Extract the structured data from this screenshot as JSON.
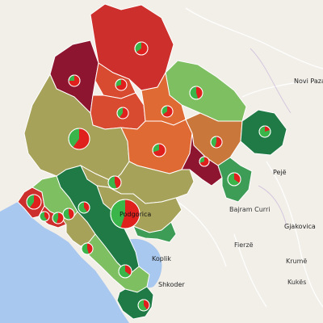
{
  "map": {
    "colors": {
      "land": "#f2efe9",
      "sea": "#a9c8ef",
      "border": "#ffffff",
      "dark_red": "#8e1530",
      "red": "#cc2f2c",
      "red_orange": "#d84b31",
      "orange": "#e06a34",
      "brown_orange": "#c9773a",
      "olive": "#a7a25a",
      "light_green": "#7ebf62",
      "green": "#3d9c56",
      "dark_green": "#1f7a45",
      "pie_red": "#e0201d",
      "pie_green": "#3ab54a"
    },
    "places": [
      {
        "name": "Novi Pazar"
      },
      {
        "name": "Pejë"
      },
      {
        "name": "Bajram Curri"
      },
      {
        "name": "Gjakovica"
      },
      {
        "name": "Fierzë"
      },
      {
        "name": "Krumë"
      },
      {
        "name": "Kukës"
      },
      {
        "name": "Koplik"
      },
      {
        "name": "Shkoder"
      },
      {
        "name": "Podgorica"
      }
    ],
    "regions": [
      {
        "id": "pljevlja",
        "color_key": "red",
        "pie_red_pct": 65
      },
      {
        "id": "pluzine",
        "color_key": "dark_red",
        "pie_red_pct": 75
      },
      {
        "id": "zabljak",
        "color_key": "red_orange",
        "pie_red_pct": 70
      },
      {
        "id": "bijelo-polje",
        "color_key": "light_green",
        "pie_red_pct": 45
      },
      {
        "id": "savnik",
        "color_key": "red_orange",
        "pie_red_pct": 60
      },
      {
        "id": "mojkovac",
        "color_key": "orange",
        "pie_red_pct": 65
      },
      {
        "id": "niksic",
        "color_key": "olive",
        "pie_red_pct": 60
      },
      {
        "id": "kolasin",
        "color_key": "orange",
        "pie_red_pct": 70
      },
      {
        "id": "berane",
        "color_key": "brown_orange",
        "pie_red_pct": 55
      },
      {
        "id": "rozaje",
        "color_key": "dark_green",
        "pie_red_pct": 20
      },
      {
        "id": "andrijevica",
        "color_key": "dark_red",
        "pie_red_pct": 70
      },
      {
        "id": "plav",
        "color_key": "green",
        "pie_red_pct": 35
      },
      {
        "id": "danilovgrad",
        "color_key": "olive",
        "pie_red_pct": 45
      },
      {
        "id": "podgorica",
        "color_key": "olive",
        "pie_red_pct": 55
      },
      {
        "id": "cetinje",
        "color_key": "dark_green",
        "pie_red_pct": 40
      },
      {
        "id": "herceg-novi",
        "color_key": "red",
        "pie_red_pct": 60
      },
      {
        "id": "kotor",
        "color_key": "light_green",
        "pie_red_pct": 40
      },
      {
        "id": "tivat",
        "color_key": "red",
        "pie_red_pct": 55
      },
      {
        "id": "budva",
        "color_key": "olive",
        "pie_red_pct": 45
      },
      {
        "id": "bar",
        "color_key": "light_green",
        "pie_red_pct": 45
      },
      {
        "id": "ulcinj",
        "color_key": "dark_green",
        "pie_red_pct": 35
      },
      {
        "id": "tuzi",
        "color_key": "green",
        "pie_red_pct": 40
      }
    ]
  }
}
